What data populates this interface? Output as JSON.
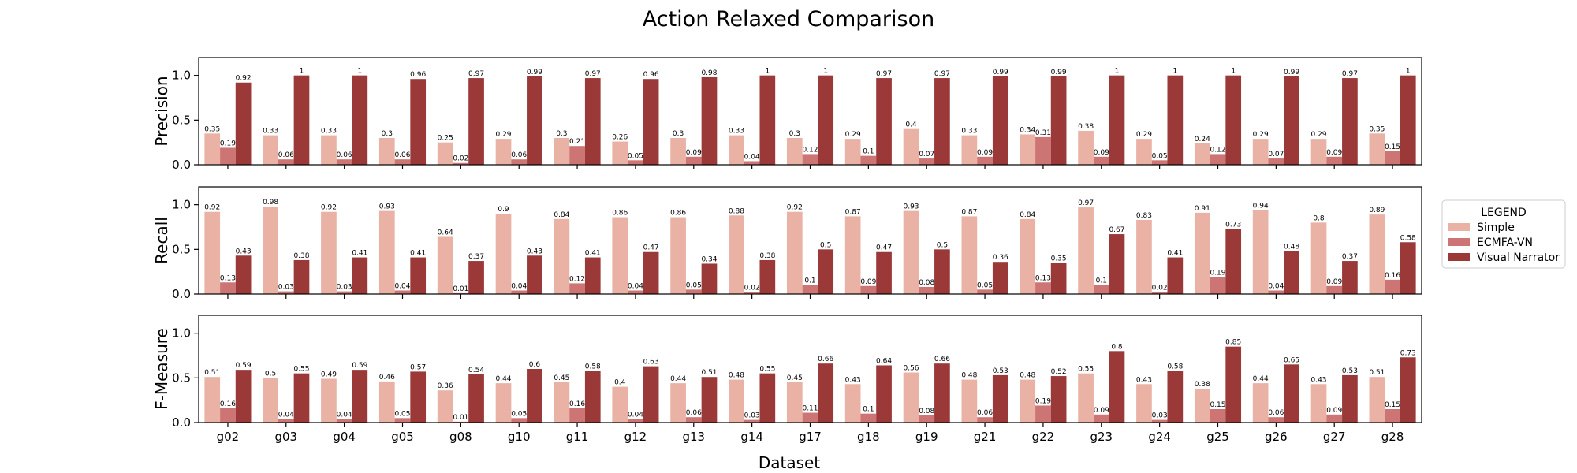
{
  "chart_data": {
    "type": "bar",
    "title": "Action Relaxed Comparison",
    "xlabel": "Dataset",
    "categories": [
      "g02",
      "g03",
      "g04",
      "g05",
      "g08",
      "g10",
      "g11",
      "g12",
      "g13",
      "g14",
      "g17",
      "g18",
      "g19",
      "g21",
      "g22",
      "g23",
      "g24",
      "g25",
      "g26",
      "g27",
      "g28"
    ],
    "ylim": [
      0,
      1.2
    ],
    "yticks": [
      "0.0",
      "0.5",
      "1.0"
    ],
    "grid": false,
    "legend": {
      "title": "LEGEND",
      "placement": "right",
      "entries": [
        "Simple",
        "ECMFA-VN",
        "Visual Narrator"
      ]
    },
    "colors": [
      "#eab2a5",
      "#cd7474",
      "#9b3838"
    ],
    "panels": [
      {
        "ylabel": "Precision",
        "series": [
          {
            "name": "Simple",
            "values": [
              0.35,
              0.33,
              0.33,
              0.3,
              0.25,
              0.29,
              0.3,
              0.26,
              0.3,
              0.33,
              0.3,
              0.29,
              0.4,
              0.33,
              0.34,
              0.38,
              0.29,
              0.24,
              0.29,
              0.29,
              0.35
            ]
          },
          {
            "name": "ECMFA-VN",
            "values": [
              0.19,
              0.06,
              0.06,
              0.06,
              0.02,
              0.06,
              0.21,
              0.05,
              0.09,
              0.04,
              0.12,
              0.1,
              0.07,
              0.09,
              0.31,
              0.09,
              0.05,
              0.12,
              0.07,
              0.09,
              0.15
            ]
          },
          {
            "name": "Visual Narrator",
            "values": [
              0.92,
              1,
              1,
              0.96,
              0.97,
              0.99,
              0.97,
              0.96,
              0.98,
              1,
              1,
              0.97,
              0.97,
              0.99,
              0.99,
              1,
              1,
              1,
              0.99,
              0.97,
              1
            ]
          }
        ]
      },
      {
        "ylabel": "Recall",
        "series": [
          {
            "name": "Simple",
            "values": [
              0.92,
              0.98,
              0.92,
              0.93,
              0.64,
              0.9,
              0.84,
              0.86,
              0.86,
              0.88,
              0.92,
              0.87,
              0.93,
              0.87,
              0.84,
              0.97,
              0.83,
              0.91,
              0.94,
              0.8,
              0.89
            ]
          },
          {
            "name": "ECMFA-VN",
            "values": [
              0.13,
              0.03,
              0.03,
              0.04,
              0.01,
              0.04,
              0.12,
              0.04,
              0.05,
              0.02,
              0.1,
              0.09,
              0.08,
              0.05,
              0.13,
              0.1,
              0.02,
              0.19,
              0.04,
              0.09,
              0.16
            ]
          },
          {
            "name": "Visual Narrator",
            "values": [
              0.43,
              0.38,
              0.41,
              0.41,
              0.37,
              0.43,
              0.41,
              0.47,
              0.34,
              0.38,
              0.5,
              0.47,
              0.5,
              0.36,
              0.35,
              0.67,
              0.41,
              0.73,
              0.48,
              0.37,
              0.58
            ]
          }
        ]
      },
      {
        "ylabel": "F-Measure",
        "series": [
          {
            "name": "Simple",
            "values": [
              0.51,
              0.5,
              0.49,
              0.46,
              0.36,
              0.44,
              0.45,
              0.4,
              0.44,
              0.48,
              0.45,
              0.43,
              0.56,
              0.48,
              0.48,
              0.55,
              0.43,
              0.38,
              0.44,
              0.43,
              0.51
            ]
          },
          {
            "name": "ECMFA-VN",
            "values": [
              0.16,
              0.04,
              0.04,
              0.05,
              0.01,
              0.05,
              0.16,
              0.04,
              0.06,
              0.03,
              0.11,
              0.1,
              0.08,
              0.06,
              0.19,
              0.09,
              0.03,
              0.15,
              0.06,
              0.09,
              0.15
            ]
          },
          {
            "name": "Visual Narrator",
            "values": [
              0.59,
              0.55,
              0.59,
              0.57,
              0.54,
              0.6,
              0.58,
              0.63,
              0.51,
              0.55,
              0.66,
              0.64,
              0.66,
              0.53,
              0.52,
              0.8,
              0.58,
              0.85,
              0.65,
              0.53,
              0.73
            ]
          }
        ]
      }
    ]
  }
}
